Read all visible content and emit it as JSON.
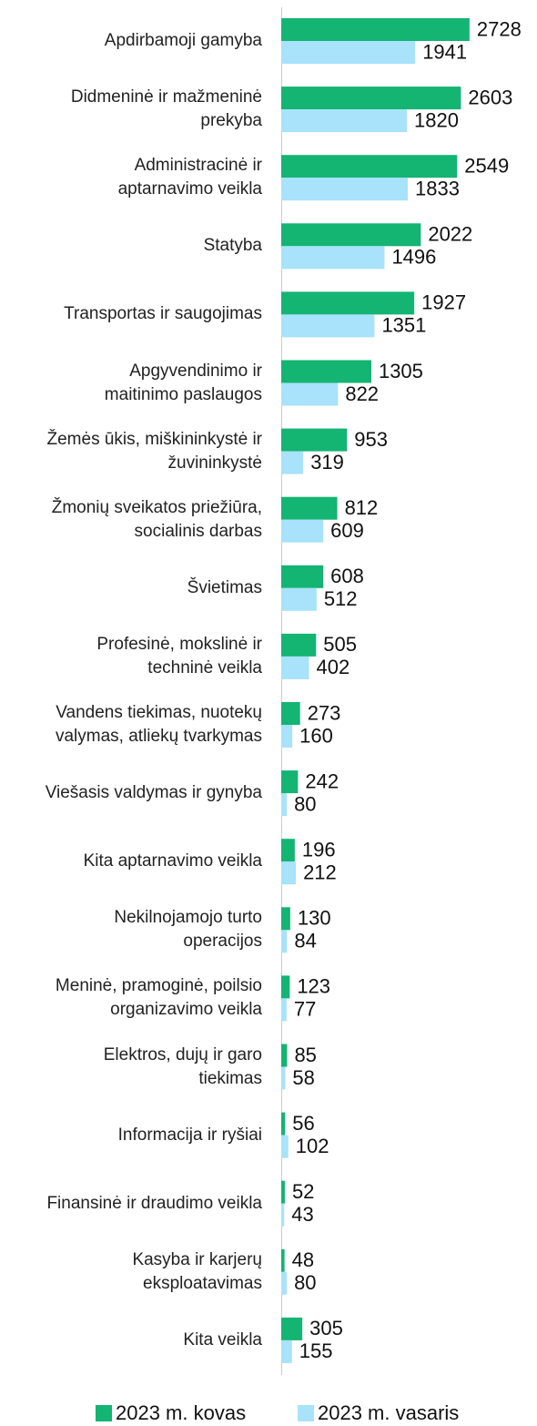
{
  "chart_data": {
    "type": "hbar",
    "categories": [
      "Apdirbamoji gamyba",
      "Didmeninė ir mažmeninė\nprekyba",
      "Administracinė ir\naptarnavimo veikla",
      "Statyba",
      "Transportas ir saugojimas",
      "Apgyvendinimo ir\nmaitinimo paslaugos",
      "Žemės ūkis, miškininkystė ir\nžuvininkystė",
      "Žmonių sveikatos priežiūra,\nsocialinis darbas",
      "Švietimas",
      "Profesinė, mokslinė ir\ntechninė veikla",
      "Vandens tiekimas, nuotekų\nvalymas, atliekų tvarkymas",
      "Viešasis valdymas ir gynyba",
      "Kita aptarnavimo veikla",
      "Nekilnojamojo turto\noperacijos",
      "Meninė, pramoginė, poilsio\norganizavimo veikla",
      "Elektros, dujų ir garo\ntiekimas",
      "Informacija ir ryšiai",
      "Finansinė ir draudimo veikla",
      "Kasyba ir karjerų\neksploatavimas",
      "Kita veikla"
    ],
    "series": [
      {
        "name": "2023 m. kovas",
        "color": "#14b473",
        "values": [
          2728,
          2603,
          2549,
          2022,
          1927,
          1305,
          953,
          812,
          608,
          505,
          273,
          242,
          196,
          130,
          123,
          85,
          56,
          52,
          48,
          305
        ]
      },
      {
        "name": "2023 m. vasaris",
        "color": "#a8e2fb",
        "values": [
          1941,
          1820,
          1833,
          1496,
          1351,
          822,
          319,
          609,
          512,
          402,
          160,
          80,
          212,
          84,
          77,
          58,
          102,
          43,
          80,
          155
        ]
      }
    ],
    "xlim": [
      0,
      3600
    ]
  }
}
